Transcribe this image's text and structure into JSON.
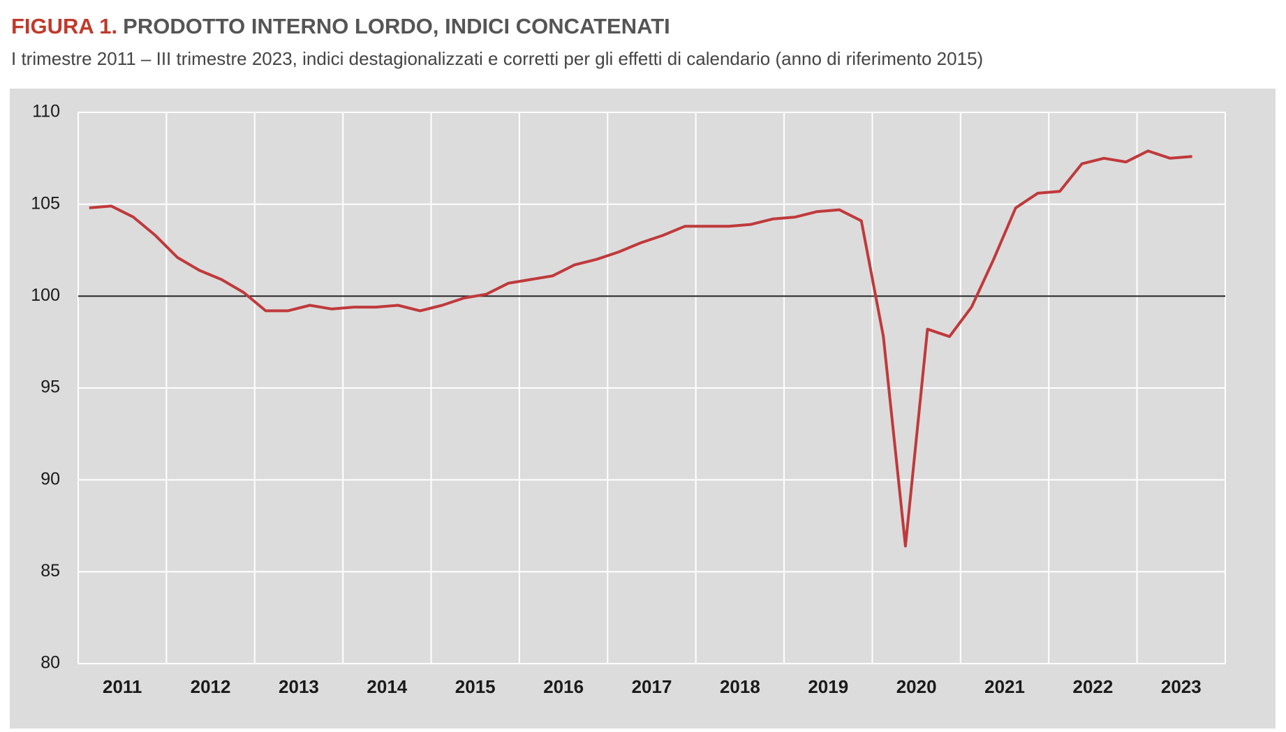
{
  "chart_data": {
    "type": "line",
    "title_prefix": "FIGURA 1.",
    "title": "PRODOTTO INTERNO LORDO, INDICI CONCATENATI",
    "subtitle": "I trimestre 2011 – III trimestre 2023, indici destagionalizzati e corretti per gli effetti di calendario (anno di riferimento 2015)",
    "categories": [
      null,
      "2011",
      null,
      null,
      null,
      "2012",
      null,
      null,
      null,
      "2013",
      null,
      null,
      null,
      "2014",
      null,
      null,
      null,
      "2015",
      null,
      null,
      null,
      "2016",
      null,
      null,
      null,
      "2017",
      null,
      null,
      null,
      "2018",
      null,
      null,
      null,
      "2019",
      null,
      null,
      null,
      "2020",
      null,
      null,
      null,
      "2021",
      null,
      null,
      null,
      "2022",
      null,
      null,
      null,
      "2023",
      null
    ],
    "series": [
      {
        "color": "#c0393b",
        "values": [
          104.8,
          104.9,
          104.3,
          103.3,
          102.1,
          101.4,
          100.9,
          100.2,
          99.2,
          99.2,
          99.5,
          99.3,
          99.4,
          99.4,
          99.5,
          99.2,
          99.5,
          99.9,
          100.1,
          100.7,
          100.9,
          101.1,
          101.7,
          102.0,
          102.4,
          102.9,
          103.3,
          103.8,
          103.8,
          103.8,
          103.9,
          104.2,
          104.3,
          104.6,
          104.7,
          104.1,
          97.8,
          86.4,
          98.2,
          97.8,
          99.4,
          102.0,
          104.8,
          105.6,
          105.7,
          107.2,
          107.5,
          107.3,
          107.9,
          107.5,
          107.6
        ]
      }
    ],
    "reference_line": 100,
    "ylim": [
      80,
      110
    ],
    "yticks": [
      80,
      85,
      90,
      95,
      100,
      105,
      110
    ],
    "grid": true
  }
}
